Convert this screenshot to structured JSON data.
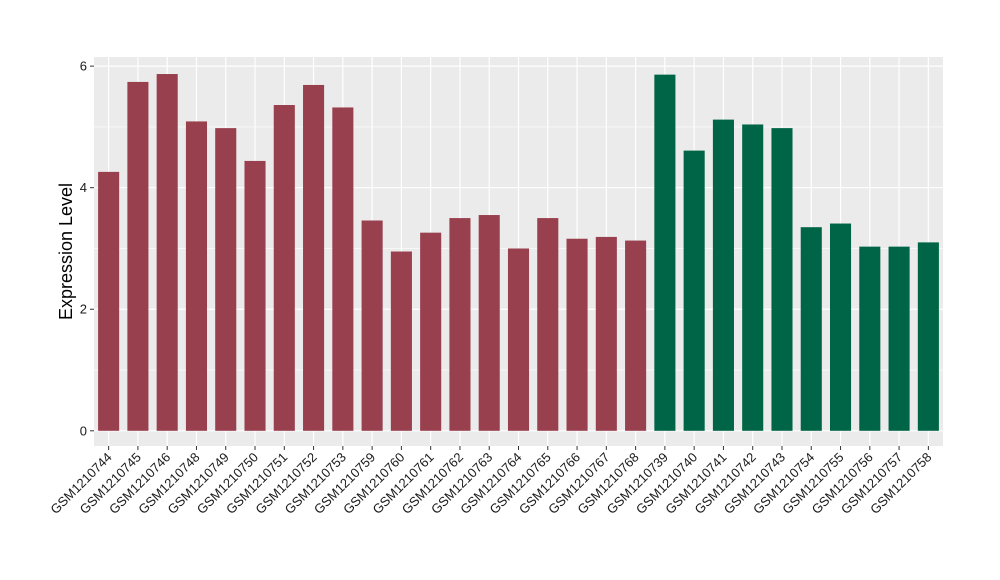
{
  "chart_data": {
    "type": "bar",
    "title": "",
    "xlabel": "",
    "ylabel": "Expression Level",
    "ylim": [
      -0.25,
      6.15
    ],
    "yticks": [
      0,
      2,
      4,
      6
    ],
    "grid": true,
    "legend": "none",
    "panel_background": "#ebebeb",
    "gridline_color": "#ffffff",
    "categories": [
      "GSM1210744",
      "GSM1210745",
      "GSM1210746",
      "GSM1210748",
      "GSM1210749",
      "GSM1210750",
      "GSM1210751",
      "GSM1210752",
      "GSM1210753",
      "GSM1210759",
      "GSM1210760",
      "GSM1210761",
      "GSM1210762",
      "GSM1210763",
      "GSM1210764",
      "GSM1210765",
      "GSM1210766",
      "GSM1210767",
      "GSM1210768",
      "GSM1210739",
      "GSM1210740",
      "GSM1210741",
      "GSM1210742",
      "GSM1210743",
      "GSM1210754",
      "GSM1210755",
      "GSM1210756",
      "GSM1210757",
      "GSM1210758"
    ],
    "values": [
      4.26,
      5.74,
      5.87,
      5.09,
      4.98,
      4.44,
      5.36,
      5.69,
      5.32,
      3.46,
      2.95,
      3.26,
      3.5,
      3.55,
      3.0,
      3.5,
      3.16,
      3.19,
      3.13,
      5.86,
      4.61,
      5.12,
      5.04,
      4.98,
      3.35,
      3.41,
      3.03,
      3.03,
      3.1
    ],
    "bar_colors": [
      "#99404e",
      "#99404e",
      "#99404e",
      "#99404e",
      "#99404e",
      "#99404e",
      "#99404e",
      "#99404e",
      "#99404e",
      "#99404e",
      "#99404e",
      "#99404e",
      "#99404e",
      "#99404e",
      "#99404e",
      "#99404e",
      "#99404e",
      "#99404e",
      "#99404e",
      "#006546",
      "#006546",
      "#006546",
      "#006546",
      "#006546",
      "#006546",
      "#006546",
      "#006546",
      "#006546",
      "#006546"
    ]
  }
}
